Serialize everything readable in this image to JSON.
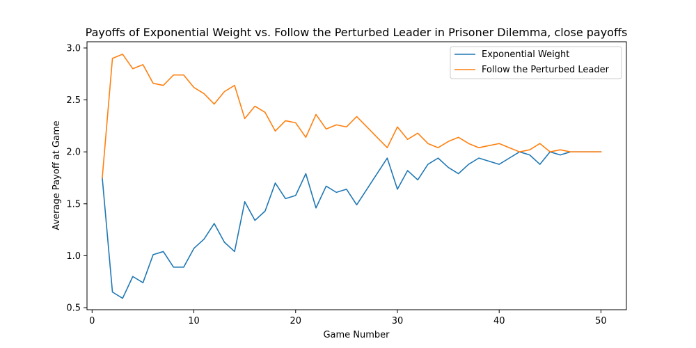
{
  "chart_data": {
    "type": "line",
    "title": "Payoffs of Exponential Weight vs. Follow the Perturbed Leader in Prisoner Dilemma, close payoffs",
    "xlabel": "Game Number",
    "ylabel": "Average Payoff at Game",
    "xlim": [
      -0.5,
      52.5
    ],
    "ylim": [
      0.48,
      3.06
    ],
    "xticks": [
      0,
      10,
      20,
      30,
      40,
      50
    ],
    "yticks": [
      0.5,
      1.0,
      1.5,
      2.0,
      2.5,
      3.0
    ],
    "xtick_labels": [
      "0",
      "10",
      "20",
      "30",
      "40",
      "50"
    ],
    "ytick_labels": [
      "0.5",
      "1.0",
      "1.5",
      "2.0",
      "2.5",
      "3.0"
    ],
    "grid": false,
    "legend": "top-right",
    "x": [
      1,
      2,
      3,
      4,
      5,
      6,
      7,
      8,
      9,
      10,
      11,
      12,
      13,
      14,
      15,
      16,
      17,
      18,
      19,
      20,
      21,
      22,
      23,
      24,
      25,
      26,
      27,
      28,
      29,
      30,
      31,
      32,
      33,
      34,
      35,
      36,
      37,
      38,
      39,
      40,
      41,
      42,
      43,
      44,
      45,
      46,
      47,
      48,
      49,
      50
    ],
    "series": [
      {
        "name": "Exponential Weight",
        "color": "#1f77b4",
        "values": [
          1.75,
          0.65,
          0.59,
          0.8,
          0.74,
          1.01,
          1.04,
          0.89,
          0.89,
          1.07,
          1.16,
          1.31,
          1.13,
          1.04,
          1.52,
          1.34,
          1.43,
          1.7,
          1.55,
          1.58,
          1.79,
          1.46,
          1.67,
          1.61,
          1.64,
          1.49,
          1.64,
          1.79,
          1.94,
          1.64,
          1.82,
          1.73,
          1.88,
          1.94,
          1.85,
          1.79,
          1.88,
          1.94,
          1.91,
          1.88,
          1.94,
          2.0,
          1.97,
          1.88,
          2.0,
          1.97,
          2.0,
          2.0,
          2.0,
          2.0
        ]
      },
      {
        "name": "Follow the Perturbed Leader",
        "color": "#ff7f0e",
        "values": [
          1.75,
          2.9,
          2.94,
          2.8,
          2.84,
          2.66,
          2.64,
          2.74,
          2.74,
          2.62,
          2.56,
          2.46,
          2.58,
          2.64,
          2.32,
          2.44,
          2.38,
          2.2,
          2.3,
          2.28,
          2.14,
          2.36,
          2.22,
          2.26,
          2.24,
          2.34,
          2.24,
          2.14,
          2.04,
          2.24,
          2.12,
          2.18,
          2.08,
          2.04,
          2.1,
          2.14,
          2.08,
          2.04,
          2.06,
          2.08,
          2.04,
          2.0,
          2.02,
          2.08,
          2.0,
          2.02,
          2.0,
          2.0,
          2.0,
          2.0
        ]
      }
    ]
  }
}
